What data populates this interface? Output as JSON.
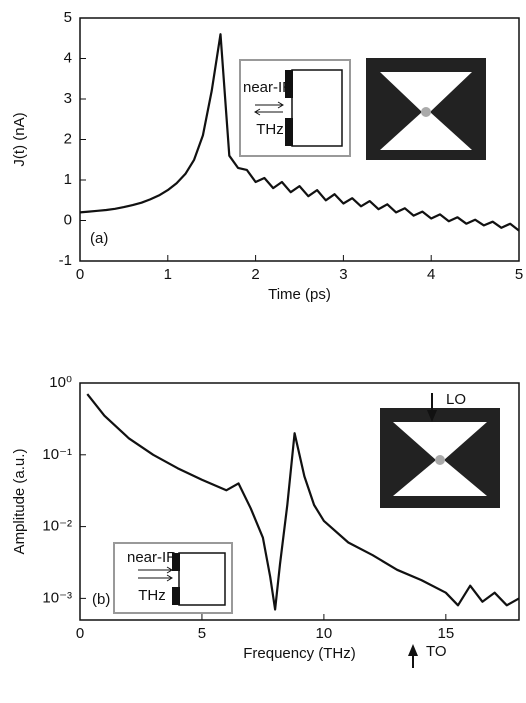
{
  "chart_data": [
    {
      "type": "line",
      "x_label": "Time (ps)",
      "y_label": "J(t) (nA)",
      "annotations": [
        "(a)",
        "near-IR",
        "THz"
      ],
      "xlim": [
        0,
        5
      ],
      "ylim": [
        -1,
        5
      ],
      "xticks": [
        0,
        1,
        2,
        3,
        4,
        5
      ],
      "yticks": [
        -1,
        0,
        1,
        2,
        3,
        4,
        5
      ],
      "log_y": false,
      "series": [
        {
          "color": "#111111",
          "x": [
            0,
            0.1,
            0.2,
            0.3,
            0.4,
            0.5,
            0.6,
            0.7,
            0.8,
            0.9,
            1.0,
            1.1,
            1.2,
            1.3,
            1.4,
            1.5,
            1.6,
            1.7,
            1.8,
            1.9,
            2.0,
            2.1,
            2.2,
            2.3,
            2.4,
            2.5,
            2.6,
            2.7,
            2.8,
            2.9,
            3.0,
            3.1,
            3.2,
            3.3,
            3.4,
            3.5,
            3.6,
            3.7,
            3.8,
            3.9,
            4.0,
            4.1,
            4.2,
            4.3,
            4.4,
            4.5,
            4.6,
            4.7,
            4.8,
            4.9,
            5.0
          ],
          "values": [
            0.2,
            0.22,
            0.24,
            0.26,
            0.29,
            0.33,
            0.38,
            0.44,
            0.52,
            0.62,
            0.75,
            0.92,
            1.15,
            1.5,
            2.1,
            3.2,
            4.6,
            1.6,
            1.3,
            1.25,
            0.95,
            1.05,
            0.8,
            0.95,
            0.7,
            0.85,
            0.6,
            0.75,
            0.5,
            0.65,
            0.42,
            0.55,
            0.35,
            0.48,
            0.28,
            0.4,
            0.2,
            0.3,
            0.12,
            0.22,
            0.05,
            0.15,
            -0.02,
            0.08,
            -0.08,
            0.02,
            -0.12,
            -0.03,
            -0.18,
            -0.08,
            -0.25
          ]
        }
      ]
    },
    {
      "type": "line",
      "x_label": "Frequency (THz)",
      "y_label": "Amplitude (a.u.)",
      "annotations": [
        "(b)",
        "near-IR",
        "THz",
        "LO",
        "TO"
      ],
      "xlim": [
        0,
        18
      ],
      "ylim": [
        0.0005,
        1
      ],
      "xticks": [
        0,
        5,
        10,
        15
      ],
      "yticks": [
        {
          "value": 1,
          "label": "10⁰"
        },
        {
          "value": 0.1,
          "label": "10⁻¹"
        },
        {
          "value": 0.01,
          "label": "10⁻²"
        },
        {
          "value": 0.001,
          "label": "10⁻³"
        }
      ],
      "log_y": true,
      "series": [
        {
          "color": "#111111",
          "x": [
            0.3,
            1,
            2,
            3,
            4,
            5,
            6,
            6.5,
            7,
            7.5,
            7.8,
            8.0,
            8.2,
            8.5,
            8.8,
            9.2,
            9.6,
            10,
            11,
            12,
            13,
            14,
            15,
            15.5,
            16,
            16.5,
            17,
            17.5,
            18
          ],
          "values": [
            0.7,
            0.35,
            0.17,
            0.1,
            0.065,
            0.045,
            0.032,
            0.04,
            0.018,
            0.007,
            0.002,
            0.0007,
            0.003,
            0.02,
            0.2,
            0.05,
            0.02,
            0.012,
            0.006,
            0.004,
            0.0025,
            0.0018,
            0.0012,
            0.0008,
            0.0015,
            0.0009,
            0.0012,
            0.0008,
            0.001
          ]
        }
      ]
    }
  ]
}
